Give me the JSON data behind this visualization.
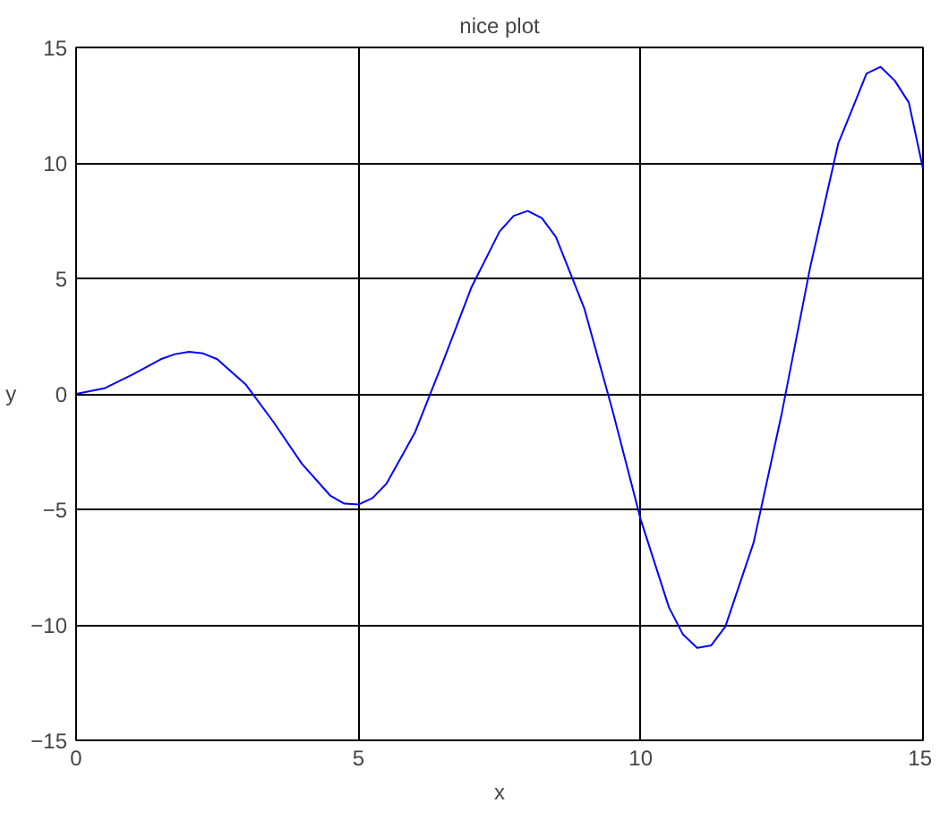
{
  "chart_data": {
    "type": "line",
    "title": "nice plot",
    "xlabel": "x",
    "ylabel": "y",
    "xlim": [
      0,
      15
    ],
    "ylim": [
      -15,
      15
    ],
    "xticks": [
      0,
      5,
      10,
      15
    ],
    "yticks": [
      -15,
      -10,
      -5,
      0,
      5,
      10,
      15
    ],
    "grid": true,
    "marker": "none",
    "line_style": "solid",
    "series": [
      {
        "color": "#0000ff",
        "x": [
          0,
          0.5,
          1,
          1.5,
          1.75,
          2,
          2.25,
          2.5,
          3,
          3.5,
          4,
          4.5,
          4.75,
          5,
          5.25,
          5.5,
          6,
          6.5,
          7,
          7.5,
          7.75,
          8,
          8.25,
          8.5,
          9,
          9.5,
          10,
          10.5,
          10.75,
          11,
          11.25,
          11.5,
          12,
          12.5,
          13,
          13.5,
          13.75,
          14,
          14.25,
          14.5,
          14.75,
          15
        ],
        "values": [
          0,
          0.24,
          0.84,
          1.5,
          1.72,
          1.82,
          1.75,
          1.5,
          0.42,
          -1.23,
          -3.03,
          -4.4,
          -4.75,
          -4.79,
          -4.51,
          -3.88,
          -1.68,
          1.4,
          4.6,
          7.03,
          7.71,
          7.92,
          7.61,
          6.79,
          3.71,
          -0.71,
          -5.44,
          -9.24,
          -10.42,
          -11.0,
          -10.89,
          -10.07,
          -6.44,
          -0.83,
          5.46,
          10.85,
          12.35,
          13.87,
          14.16,
          13.56,
          12.61,
          9.75
        ]
      }
    ]
  }
}
